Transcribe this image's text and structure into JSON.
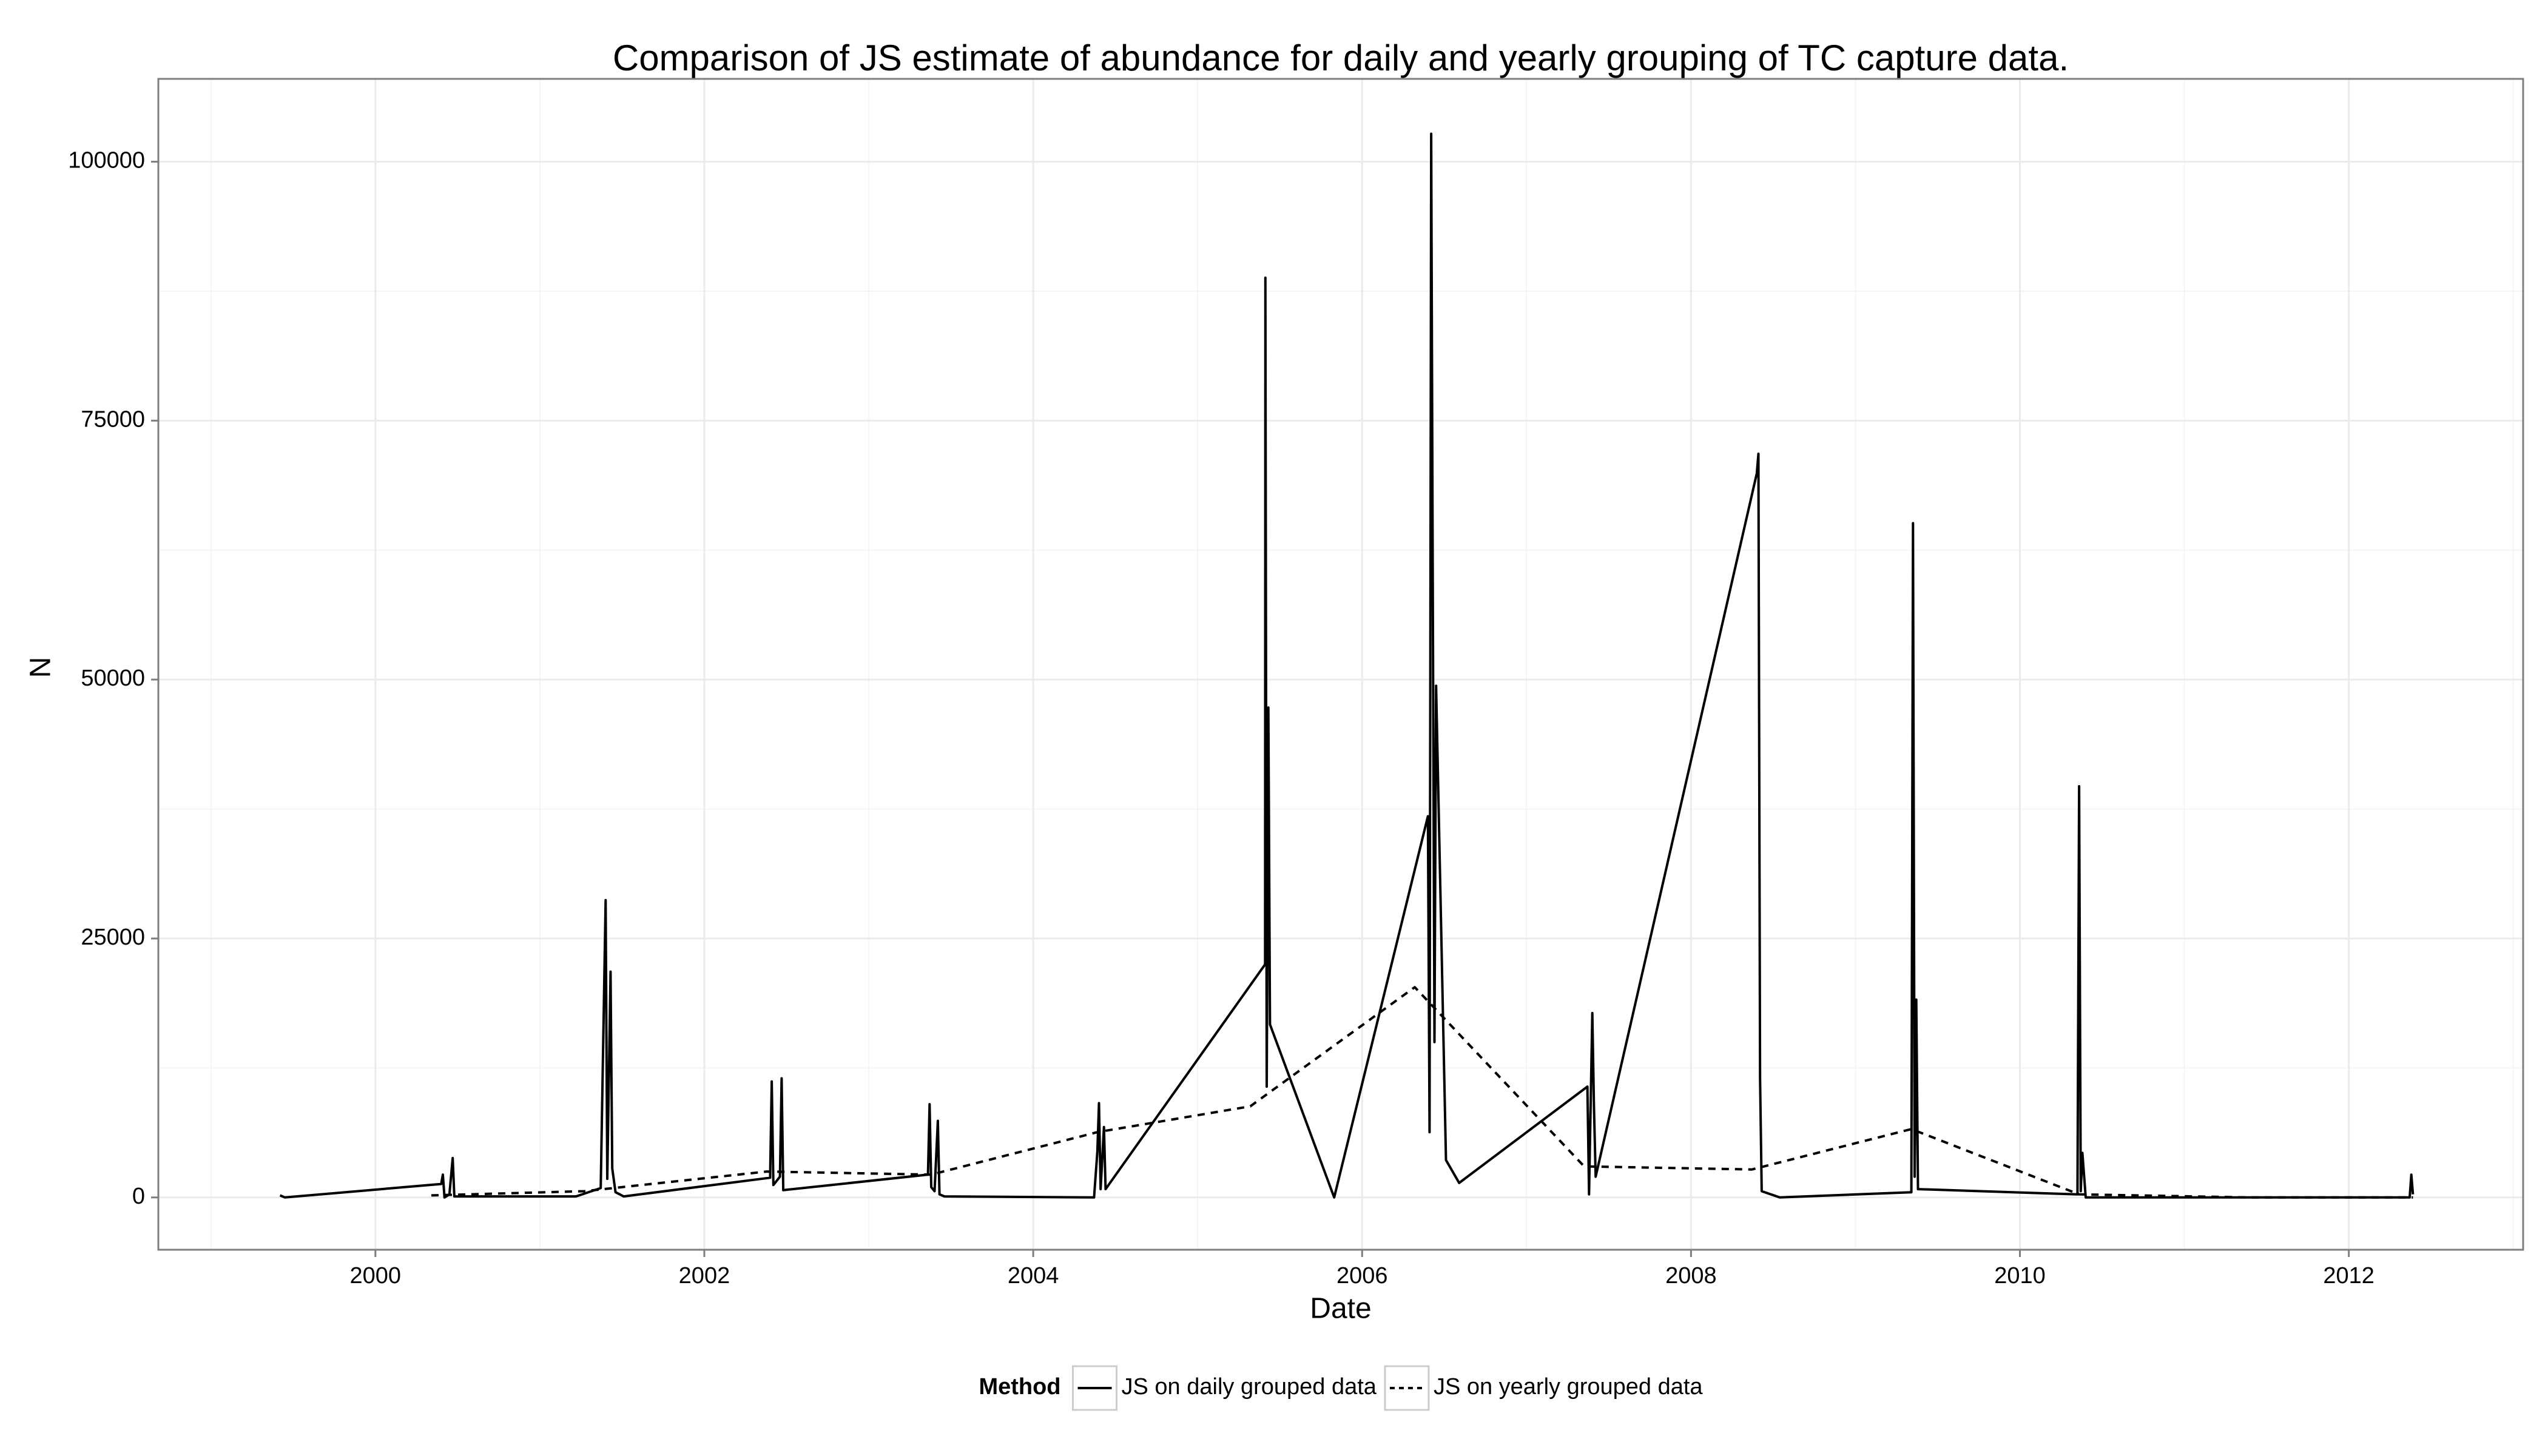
{
  "chart_data": {
    "type": "line",
    "title": "Comparison of JS estimate of abundance for daily and yearly grouping of TC capture data.",
    "x_label": "Date",
    "y_label": "N",
    "legend_title": "Method",
    "legend_position": "bottom",
    "grid": true,
    "xlim": [
      1998.68,
      2013.06
    ],
    "xticks": [
      2000,
      2002,
      2004,
      2006,
      2008,
      2010,
      2012
    ],
    "ylim": [
      -5050,
      108000
    ],
    "yticks": [
      0,
      25000,
      50000,
      75000,
      100000
    ],
    "series": [
      {
        "name": "JS on daily grouped data",
        "color": "#000000",
        "dash": "solid",
        "x": [
          1999.42,
          1999.45,
          2000.4,
          2000.41,
          2000.42,
          2000.45,
          2000.47,
          2000.48,
          2001.22,
          2001.37,
          2001.4,
          2001.41,
          2001.43,
          2001.44,
          2001.46,
          2001.51,
          2002.4,
          2002.41,
          2002.42,
          2002.46,
          2002.47,
          2002.48,
          2003.36,
          2003.37,
          2003.38,
          2003.4,
          2003.42,
          2003.43,
          2003.46,
          2004.37,
          2004.39,
          2004.4,
          2004.41,
          2004.43,
          2004.44,
          2005.41,
          2005.412,
          2005.42,
          2005.43,
          2005.44,
          2005.83,
          2006.4,
          2006.41,
          2006.42,
          2006.43,
          2006.44,
          2006.45,
          2006.51,
          2006.59,
          2007.37,
          2007.38,
          2007.4,
          2007.41,
          2007.42,
          2008.4,
          2008.41,
          2008.42,
          2008.43,
          2008.54,
          2009.34,
          2009.35,
          2009.36,
          2009.37,
          2009.38,
          2010.35,
          2010.36,
          2010.37,
          2010.38,
          2010.4,
          2011.42,
          2012.37,
          2012.38,
          2012.39
        ],
        "values": [
          200,
          0,
          1300,
          2200,
          0,
          300,
          3800,
          100,
          100,
          900,
          28700,
          1800,
          21800,
          2800,
          500,
          100,
          1900,
          11200,
          1200,
          2000,
          11500,
          700,
          2200,
          9000,
          1000,
          600,
          7400,
          300,
          100,
          0,
          4400,
          9100,
          800,
          6800,
          800,
          22500,
          88800,
          10700,
          47300,
          16700,
          0,
          36800,
          6300,
          102700,
          57900,
          15000,
          49400,
          3600,
          1400,
          10700,
          300,
          17800,
          8800,
          2000,
          69900,
          71800,
          11500,
          600,
          0,
          500,
          65100,
          2000,
          19100,
          800,
          300,
          39700,
          600,
          4300,
          0,
          0,
          0,
          2200,
          300
        ]
      },
      {
        "name": "JS on yearly grouped data",
        "color": "#000000",
        "dash": "dashed",
        "x": [
          2000.34,
          2001.27,
          2002.38,
          2003.38,
          2004.39,
          2005.32,
          2006.32,
          2007.35,
          2008.37,
          2009.34,
          2010.36,
          2011.4,
          2012.39
        ],
        "values": [
          200,
          600,
          2500,
          2200,
          6300,
          8800,
          20300,
          3000,
          2700,
          6600,
          300,
          0,
          0
        ]
      }
    ]
  }
}
